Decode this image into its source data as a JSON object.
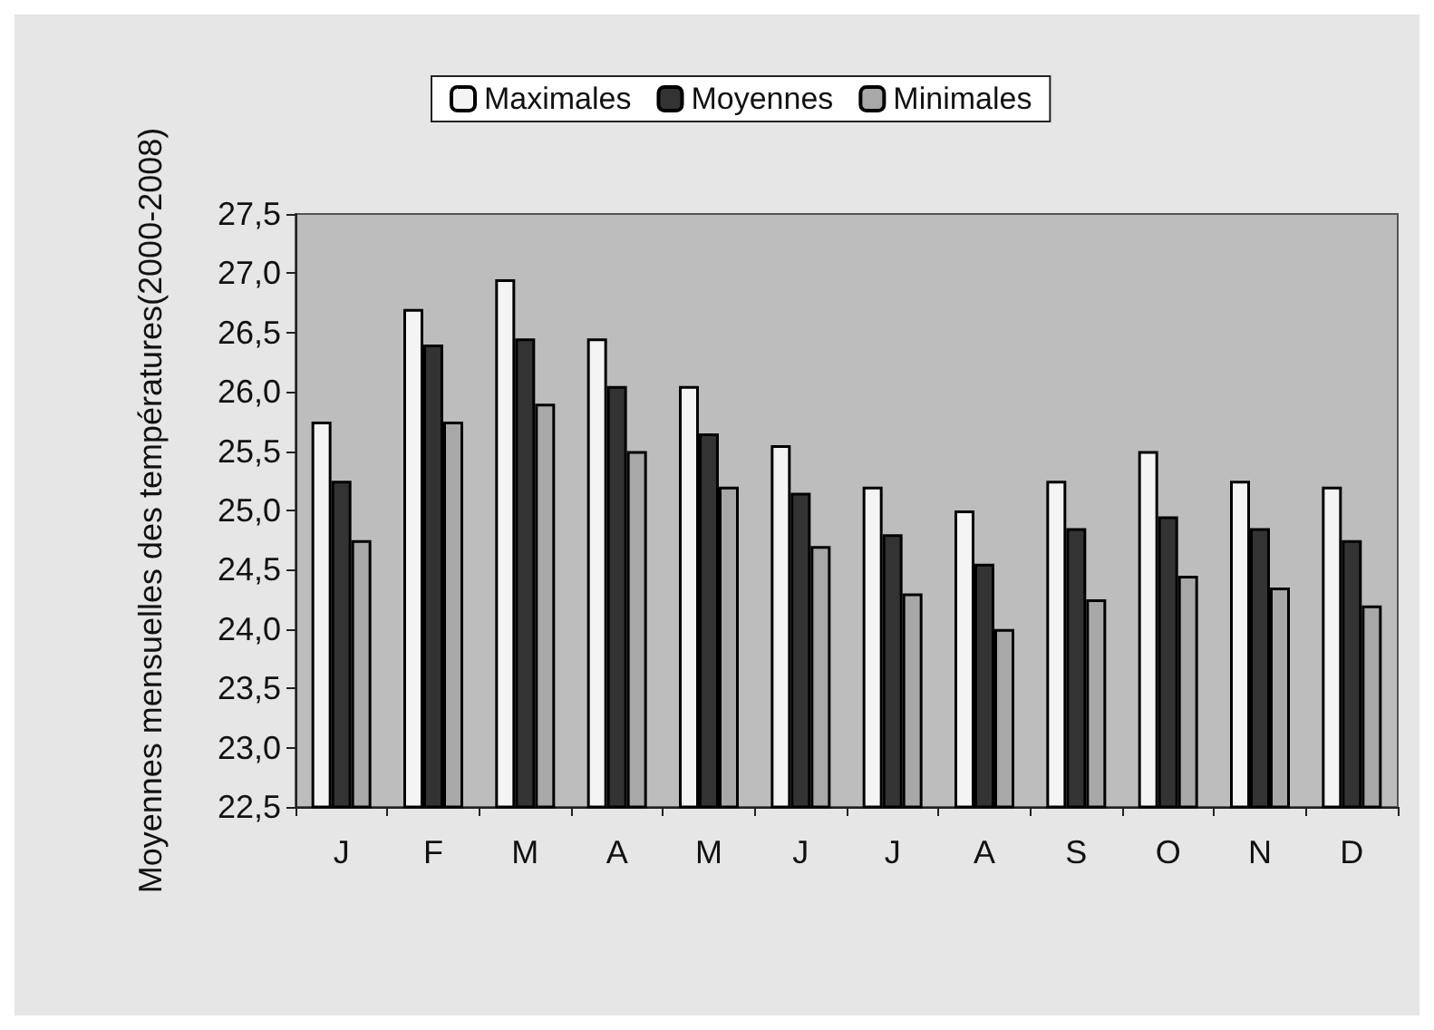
{
  "chart_data": {
    "type": "bar",
    "ylabel": "Moyennes mensuelles des températures(2000-2008)",
    "categories": [
      "J",
      "F",
      "M",
      "A",
      "M",
      "J",
      "J",
      "A",
      "S",
      "O",
      "N",
      "D"
    ],
    "series": [
      {
        "name": "Maximales",
        "color": "#f4f4f4",
        "values": [
          25.75,
          26.7,
          26.95,
          26.45,
          26.05,
          25.55,
          25.2,
          25.0,
          25.25,
          25.5,
          25.25,
          25.2
        ]
      },
      {
        "name": "Moyennes",
        "color": "#333333",
        "values": [
          25.25,
          26.4,
          26.45,
          26.05,
          25.65,
          25.15,
          24.8,
          24.55,
          24.85,
          24.95,
          24.85,
          24.75
        ]
      },
      {
        "name": "Minimales",
        "color": "#a8a8a8",
        "values": [
          24.75,
          25.75,
          25.9,
          25.5,
          25.2,
          24.7,
          24.3,
          24.0,
          24.25,
          24.45,
          24.35,
          24.2
        ]
      }
    ],
    "ylim": [
      22.5,
      27.5
    ],
    "yticks": [
      {
        "value": 22.5,
        "label": "22,5"
      },
      {
        "value": 23,
        "label": "23,0"
      },
      {
        "value": 23.5,
        "label": "23,5"
      },
      {
        "value": 24,
        "label": "24,0"
      },
      {
        "value": 24.5,
        "label": "24,5"
      },
      {
        "value": 25,
        "label": "25,0"
      },
      {
        "value": 25.5,
        "label": "25,5"
      },
      {
        "value": 26,
        "label": "26,0"
      },
      {
        "value": 26.5,
        "label": "26,5"
      },
      {
        "value": 27,
        "label": "27,0"
      },
      {
        "value": 27.5,
        "label": "27,5"
      }
    ],
    "grid": false,
    "legend": "top"
  }
}
